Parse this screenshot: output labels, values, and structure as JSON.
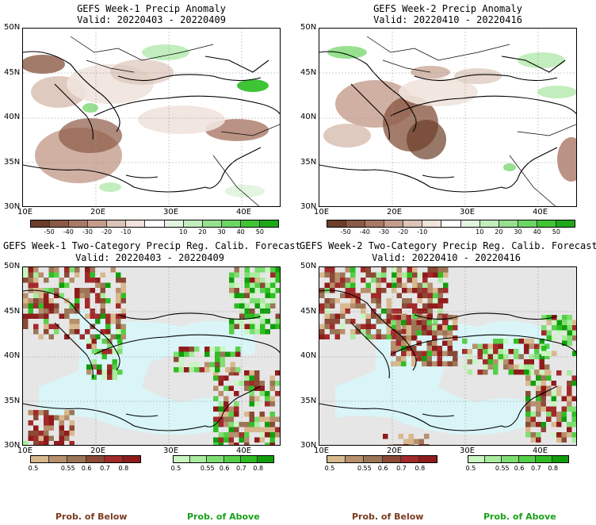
{
  "panels": [
    {
      "title1": "GEFS Week-1 Precip Anomaly",
      "title2": "Valid: 20220403 - 20220409"
    },
    {
      "title1": "GEFS Week-2 Precip Anomaly",
      "title2": "Valid: 20220410 - 20220416"
    },
    {
      "title1": "GEFS Week-1 Two-Category Precip Reg. Calib. Forecast",
      "title2": "Valid: 20220403 - 20220409"
    },
    {
      "title1": "GEFS Week-2 Two-Category Precip Reg. Calib. Forecast",
      "title2": "Valid: 20220410 - 20220416"
    }
  ],
  "lat_ticks": [
    "50N",
    "45N",
    "40N",
    "35N",
    "30N"
  ],
  "lon_ticks": [
    "10E",
    "20E",
    "30E",
    "40E"
  ],
  "anomaly_colorbar": {
    "labels": [
      "-50",
      "-40",
      "-30",
      "-20",
      "-10",
      "10",
      "20",
      "30",
      "40",
      "50"
    ],
    "colors": [
      "#6b3e2a",
      "#8c5a45",
      "#a97866",
      "#c49c8c",
      "#dcc4b8",
      "#efe3dd",
      "#ffffff",
      "#e3f5e1",
      "#c2edbd",
      "#97e08f",
      "#6cd663",
      "#3fc436",
      "#1fa81a"
    ]
  },
  "prob_below_colorbar": {
    "labels": [
      "0.5",
      "0.55",
      "0.6",
      "0.7",
      "0.8"
    ],
    "colors": [
      "#d8b88e",
      "#b78f6c",
      "#9b7556",
      "#8a4a36",
      "#a22a2a",
      "#8f1c1c"
    ]
  },
  "prob_above_colorbar": {
    "labels": [
      "0.5",
      "0.55",
      "0.6",
      "0.7",
      "0.8"
    ],
    "colors": [
      "#c9f5c0",
      "#a8ec9d",
      "#7fde72",
      "#55cf47",
      "#2fbe22",
      "#109e0b"
    ]
  },
  "footer": {
    "below": "Prob. of Below",
    "above": "Prob. of Above",
    "below_color": "#7a3a1e",
    "above_color": "#18a018"
  },
  "map_colors": {
    "ocean": "#d9f5f7",
    "no_data": "#e6e6e6"
  }
}
